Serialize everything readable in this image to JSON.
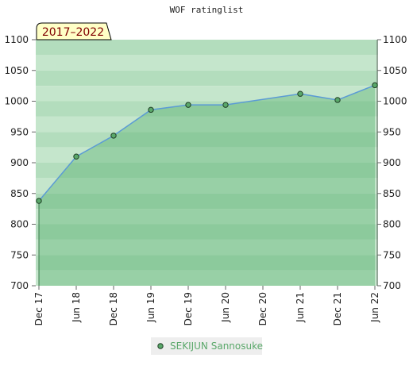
{
  "chart_data": {
    "type": "line",
    "title": "WOF ratinglist",
    "period_label": "2017–2022",
    "xticks": [
      "Dec 17",
      "Jun 18",
      "Dec 18",
      "Jun 19",
      "Dec 19",
      "Jun 20",
      "Dec 20",
      "Jun 21",
      "Dec 21",
      "Jun 22"
    ],
    "x": [
      "Dec 17",
      "Jun 18",
      "Dec 18",
      "Jun 19",
      "Dec 19",
      "Jun 20",
      "Jun 21",
      "Dec 21",
      "Jun 22"
    ],
    "series": [
      {
        "name": "SEKIJUN Sannosuke",
        "color": "#5aa86a",
        "values": [
          838,
          910,
          944,
          986,
          994,
          994,
          1012,
          1002,
          1026
        ]
      }
    ],
    "ylim": [
      700,
      1100
    ],
    "yticks": [
      700,
      750,
      800,
      850,
      900,
      950,
      1000,
      1050,
      1100
    ]
  }
}
